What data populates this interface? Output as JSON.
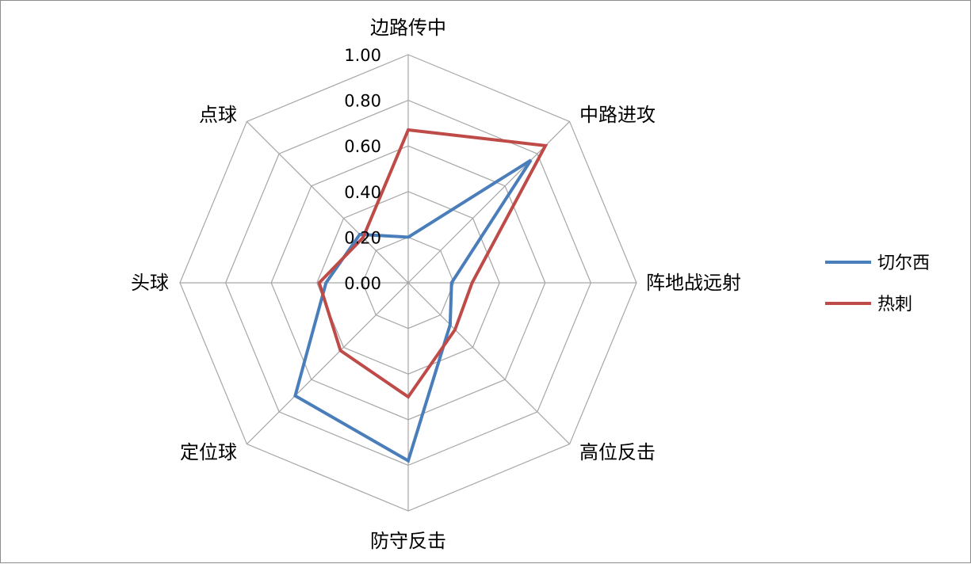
{
  "chart_data": {
    "type": "radar",
    "axes": [
      "边路传中",
      "中路进攻",
      "阵地战远射",
      "高位反击",
      "防守反击",
      "定位球",
      "头球",
      "点球"
    ],
    "ticks": [
      "0.00",
      "0.20",
      "0.40",
      "0.60",
      "0.80",
      "1.00"
    ],
    "range": [
      0,
      1
    ],
    "grid": true,
    "legend_position": "right",
    "series": [
      {
        "name": "切尔西",
        "color": "#4a7ebb",
        "values": [
          0.2,
          0.76,
          0.19,
          0.26,
          0.78,
          0.7,
          0.36,
          0.3
        ]
      },
      {
        "name": "热刺",
        "color": "#be4b48",
        "values": [
          0.67,
          0.85,
          0.28,
          0.29,
          0.5,
          0.42,
          0.39,
          0.28
        ]
      }
    ]
  }
}
